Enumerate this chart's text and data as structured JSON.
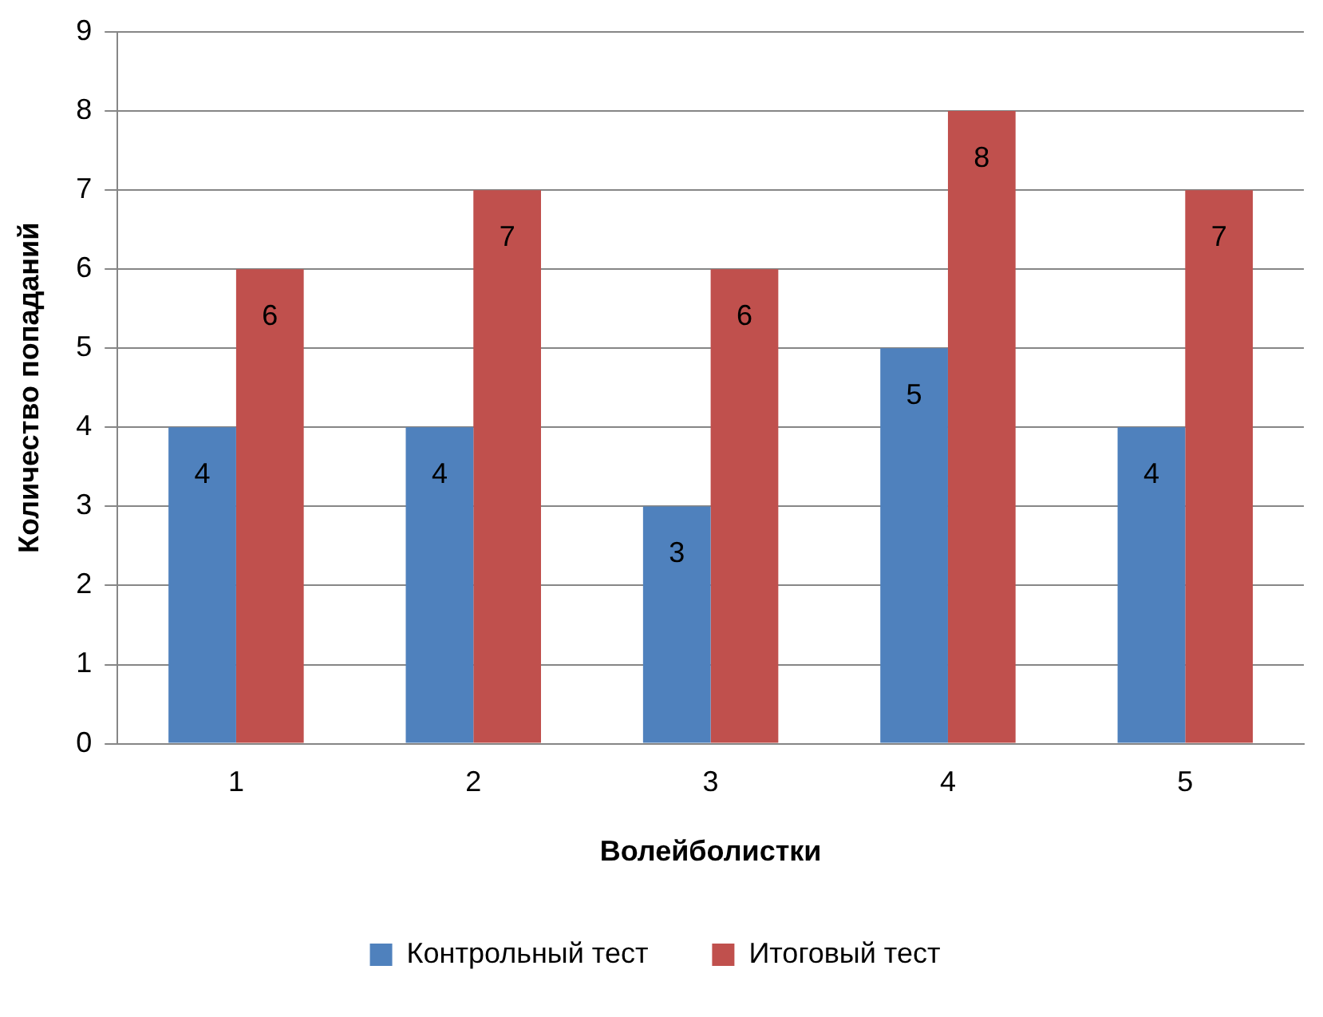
{
  "chart_data": {
    "type": "bar",
    "xlabel": "Волейболистки",
    "ylabel": "Количество попаданий",
    "categories": [
      "1",
      "2",
      "3",
      "4",
      "5"
    ],
    "series": [
      {
        "name": "Контрольный тест",
        "color": "#4f81bd",
        "values": [
          4,
          4,
          3,
          5,
          4
        ]
      },
      {
        "name": "Итоговый тест",
        "color": "#c0504d",
        "values": [
          6,
          7,
          6,
          8,
          7
        ]
      }
    ],
    "ylim": [
      0,
      9
    ],
    "yticks": [
      0,
      1,
      2,
      3,
      4,
      5,
      6,
      7,
      8,
      9
    ],
    "grid": "y",
    "legend": "bottom",
    "data_labels": true
  }
}
